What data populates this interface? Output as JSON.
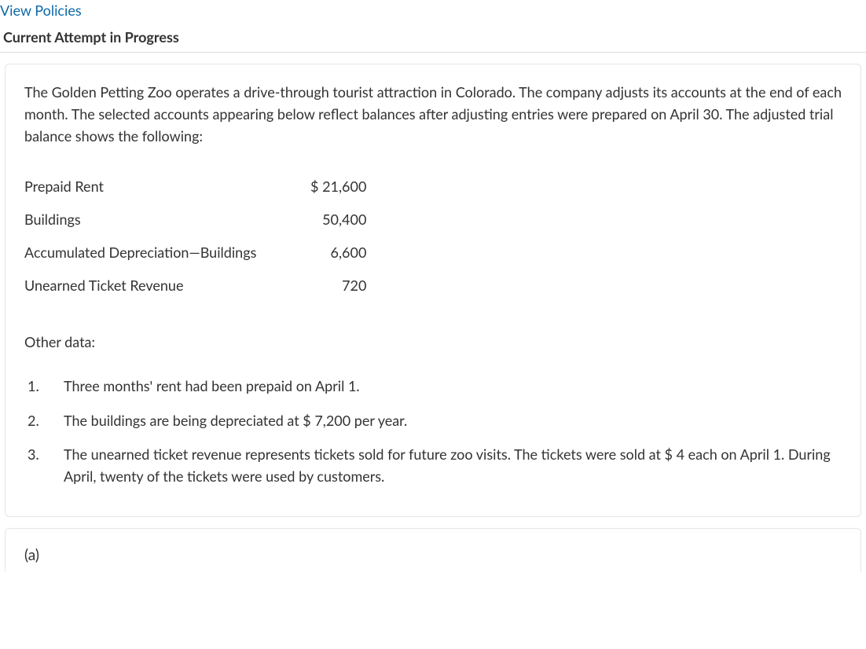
{
  "link_text": "View Policies",
  "heading": "Current Attempt in Progress",
  "intro": "The Golden Petting Zoo operates a drive-through tourist attraction in Colorado. The company adjusts its accounts at the end of each month. The selected accounts appearing below reflect balances after adjusting entries were prepared on April 30. The adjusted trial balance shows the following:",
  "balances": [
    {
      "label": "Prepaid Rent",
      "value": "$ 21,600"
    },
    {
      "label": "Buildings",
      "value": "50,400"
    },
    {
      "label": "Accumulated Depreciation—Buildings",
      "value": "6,600"
    },
    {
      "label": "Unearned Ticket Revenue",
      "value": "720"
    }
  ],
  "other_label": "Other data:",
  "items": [
    {
      "n": "1.",
      "text": "Three months' rent had been prepaid on April 1."
    },
    {
      "n": "2.",
      "text": "The buildings are being depreciated at $ 7,200 per year."
    },
    {
      "n": "3.",
      "text": "The unearned ticket revenue represents tickets sold for future zoo visits. The tickets were sold at $ 4 each on April 1. During April, twenty of the tickets were used by customers."
    }
  ],
  "part": "(a)"
}
